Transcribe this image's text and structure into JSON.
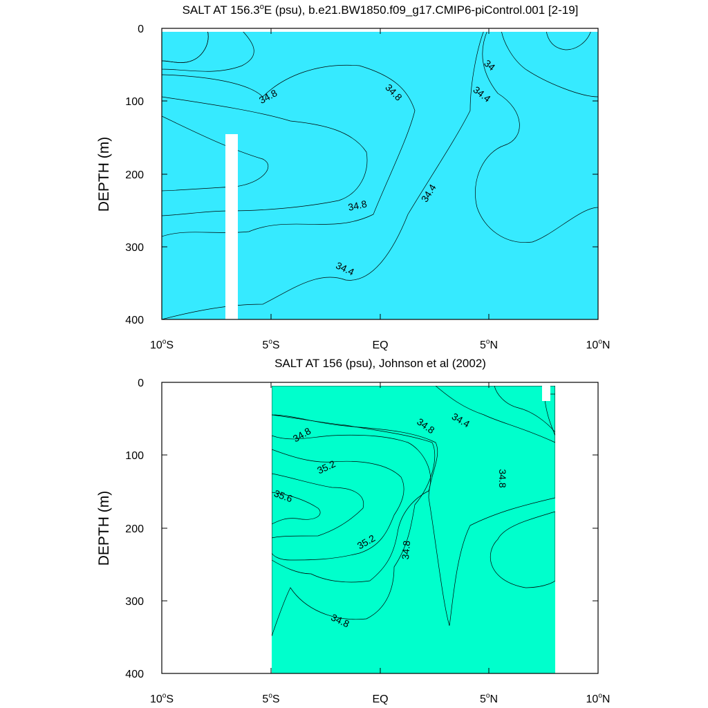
{
  "chart_data": [
    {
      "type": "contour",
      "title_pre": "SALT AT 156.3",
      "title_deg": "o",
      "title_post": "E (psu), b.e21.BW1850.f09_g17.CMIP6-piControl.001 [2-19]",
      "ylabel": "DEPTH (m)",
      "xlim": [
        -10,
        10
      ],
      "ylim": [
        400,
        0
      ],
      "x_ticks": [
        {
          "num": "10",
          "deg": "o",
          "hemi": "S"
        },
        {
          "num": "5",
          "deg": "o",
          "hemi": "S"
        },
        {
          "num": "EQ",
          "deg": "",
          "hemi": ""
        },
        {
          "num": "5",
          "deg": "o",
          "hemi": "N"
        },
        {
          "num": "10",
          "deg": "o",
          "hemi": "N"
        }
      ],
      "y_ticks": [
        "0",
        "100",
        "200",
        "300",
        "400"
      ],
      "contour_labels": [
        "34",
        "34.4",
        "34.8",
        "34.8",
        "34.8",
        "34.4",
        "34.4",
        "34.8",
        "34.4"
      ]
    },
    {
      "type": "contour",
      "title_pre": "SALT AT 156 (psu), Johnson et al (2002)",
      "title_deg": "",
      "title_post": "",
      "ylabel": "DEPTH (m)",
      "xlim": [
        -10,
        10
      ],
      "ylim": [
        400,
        0
      ],
      "x_ticks": [
        {
          "num": "10",
          "deg": "o",
          "hemi": "S"
        },
        {
          "num": "5",
          "deg": "o",
          "hemi": "S"
        },
        {
          "num": "EQ",
          "deg": "",
          "hemi": ""
        },
        {
          "num": "5",
          "deg": "o",
          "hemi": "N"
        },
        {
          "num": "10",
          "deg": "o",
          "hemi": "N"
        }
      ],
      "y_ticks": [
        "0",
        "100",
        "200",
        "300",
        "400"
      ],
      "contour_labels": [
        "34.8",
        "34.8",
        "34.4",
        "35.2",
        "34.8",
        "35.6",
        "35.2",
        "34.8",
        "34.8"
      ]
    }
  ],
  "colors": {
    "s33_6": "#0055ff",
    "s34_0": "#0aaaff",
    "s34_2": "#19ccff",
    "s34_4": "#36eaff",
    "s34_6": "#00ffff",
    "s34_8": "#00ffcc",
    "s35_0": "#00ff99",
    "s35_2": "#00ff33",
    "s35_4": "#99ff00",
    "s35_6": "#ffff00"
  }
}
